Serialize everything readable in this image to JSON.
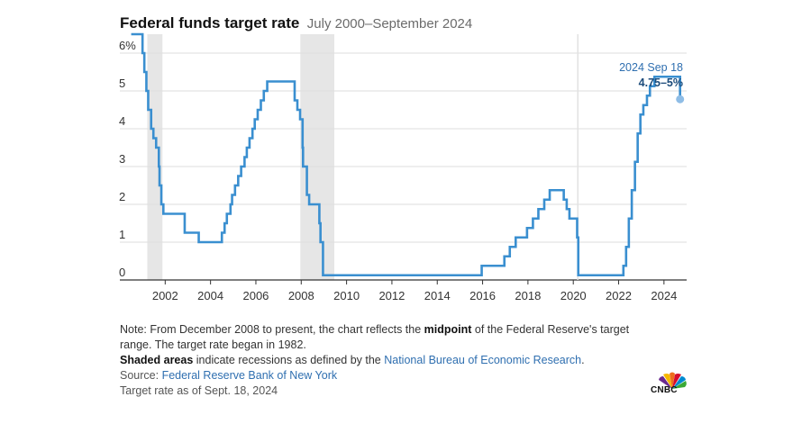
{
  "header": {
    "title": "Federal funds target rate",
    "subtitle": "July 2000–September 2024"
  },
  "notes": {
    "line1_pre": "Note: From December 2008 to present, the chart reflects the ",
    "line1_bold": "midpoint",
    "line1_post": " of the Federal Reserve's target range. The target rate began in 1982.",
    "line2_bold": "Shaded areas",
    "line2_pre": " indicate recessions as defined by the ",
    "line2_link": "National Bureau of Economic Research",
    "line2_post": ".",
    "source_label": "Source: ",
    "source_link": "Federal Reserve Bank of New York",
    "asof": "Target rate as of Sept. 18, 2024"
  },
  "logo": {
    "text": "CNBC"
  },
  "colors": {
    "line": "#3a8fd0",
    "recession": "#e6e6e6",
    "grid": "#dddddd",
    "axis": "#333333",
    "marker": "#8fbde6",
    "dark_label": "#1c4b7a",
    "link": "#2f6fb0"
  },
  "chart_data": {
    "type": "line",
    "step": true,
    "xlim": [
      2000.0,
      2025.0
    ],
    "ylim": [
      0,
      6.5
    ],
    "yticks": [
      0,
      1,
      2,
      3,
      4,
      5,
      6
    ],
    "ytick_labels": [
      "0",
      "1",
      "2",
      "3",
      "4",
      "5",
      "6%"
    ],
    "xticks": [
      2002,
      2004,
      2006,
      2008,
      2010,
      2012,
      2014,
      2016,
      2018,
      2020,
      2022,
      2024
    ],
    "xtick_labels": [
      "2002",
      "2004",
      "2006",
      "2008",
      "2010",
      "2012",
      "2014",
      "2016",
      "2018",
      "2020",
      "2022",
      "2024"
    ],
    "grid": true,
    "recessions": [
      [
        2001.21,
        2001.88
      ],
      [
        2007.96,
        2009.46
      ]
    ],
    "annotation": {
      "date_label": "2024 Sep 18",
      "value_label": "4.75–5%",
      "x": 2024.71,
      "y": 4.875
    },
    "series": [
      {
        "values": [
          [
            2000.5,
            6.5
          ],
          [
            2001.0,
            6.0
          ],
          [
            2001.08,
            5.5
          ],
          [
            2001.17,
            5.0
          ],
          [
            2001.25,
            4.5
          ],
          [
            2001.38,
            4.0
          ],
          [
            2001.48,
            3.75
          ],
          [
            2001.6,
            3.5
          ],
          [
            2001.72,
            3.0
          ],
          [
            2001.75,
            2.5
          ],
          [
            2001.83,
            2.0
          ],
          [
            2001.92,
            1.75
          ],
          [
            2002.86,
            1.25
          ],
          [
            2003.48,
            1.0
          ],
          [
            2004.5,
            1.25
          ],
          [
            2004.62,
            1.5
          ],
          [
            2004.72,
            1.75
          ],
          [
            2004.88,
            2.0
          ],
          [
            2004.95,
            2.25
          ],
          [
            2005.08,
            2.5
          ],
          [
            2005.22,
            2.75
          ],
          [
            2005.35,
            3.0
          ],
          [
            2005.5,
            3.25
          ],
          [
            2005.6,
            3.5
          ],
          [
            2005.72,
            3.75
          ],
          [
            2005.85,
            4.0
          ],
          [
            2005.95,
            4.25
          ],
          [
            2006.08,
            4.5
          ],
          [
            2006.22,
            4.75
          ],
          [
            2006.35,
            5.0
          ],
          [
            2006.5,
            5.25
          ],
          [
            2007.71,
            4.75
          ],
          [
            2007.83,
            4.5
          ],
          [
            2007.95,
            4.25
          ],
          [
            2008.06,
            3.5
          ],
          [
            2008.08,
            3.0
          ],
          [
            2008.25,
            2.25
          ],
          [
            2008.35,
            2.0
          ],
          [
            2008.8,
            1.5
          ],
          [
            2008.85,
            1.0
          ],
          [
            2008.96,
            0.125
          ],
          [
            2015.96,
            0.375
          ],
          [
            2016.96,
            0.625
          ],
          [
            2017.2,
            0.875
          ],
          [
            2017.46,
            1.125
          ],
          [
            2017.96,
            1.375
          ],
          [
            2018.22,
            1.625
          ],
          [
            2018.46,
            1.875
          ],
          [
            2018.72,
            2.125
          ],
          [
            2018.96,
            2.375
          ],
          [
            2019.58,
            2.125
          ],
          [
            2019.71,
            1.875
          ],
          [
            2019.83,
            1.625
          ],
          [
            2020.17,
            1.125
          ],
          [
            2020.22,
            0.125
          ],
          [
            2022.21,
            0.375
          ],
          [
            2022.33,
            0.875
          ],
          [
            2022.45,
            1.625
          ],
          [
            2022.58,
            2.375
          ],
          [
            2022.72,
            3.125
          ],
          [
            2022.84,
            3.875
          ],
          [
            2022.96,
            4.375
          ],
          [
            2023.09,
            4.625
          ],
          [
            2023.25,
            4.875
          ],
          [
            2023.38,
            5.125
          ],
          [
            2023.58,
            5.375
          ],
          [
            2024.71,
            4.875
          ]
        ]
      }
    ]
  }
}
